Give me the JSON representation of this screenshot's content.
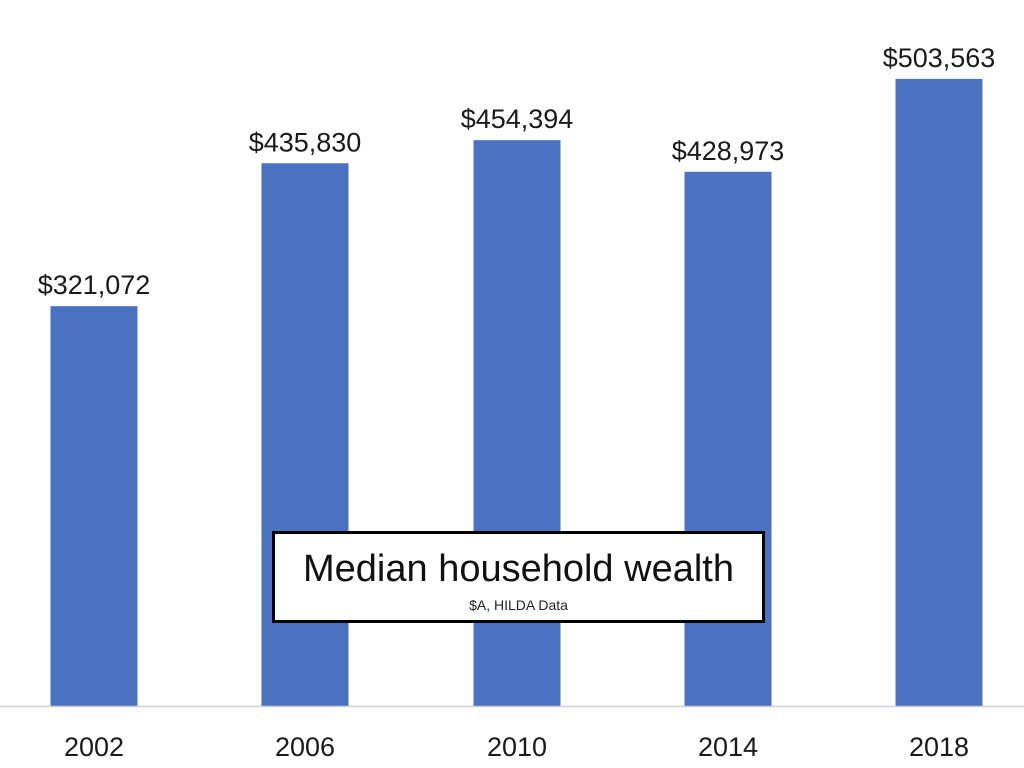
{
  "chart_data": {
    "type": "bar",
    "title": "Median household wealth",
    "subtitle": "$A, HILDA Data",
    "categories": [
      "2002",
      "2006",
      "2010",
      "2014",
      "2018"
    ],
    "values": [
      321072,
      435830,
      454394,
      428973,
      503563
    ],
    "data_labels": [
      "$321,072",
      "$435,830",
      "$454,394",
      "$428,973",
      "$503,563"
    ],
    "xlabel": "",
    "ylabel": "",
    "ylim": [
      0,
      530000
    ],
    "grid": false,
    "legend": "none",
    "bar_color": "#4a72c0",
    "axis_color": "#d0d0d0"
  }
}
